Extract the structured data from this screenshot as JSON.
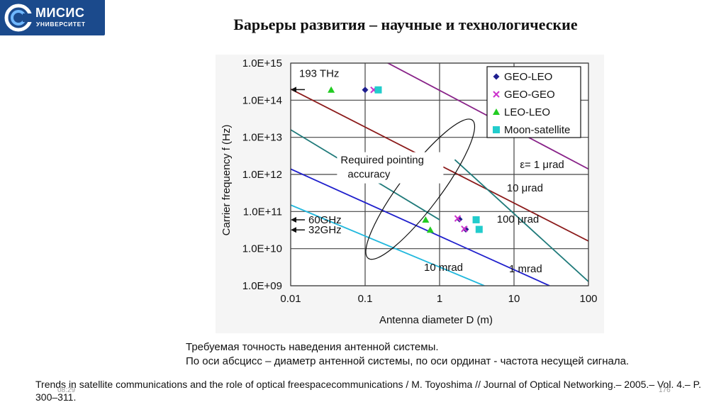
{
  "logo": {
    "name": "МИСИС",
    "sub": "УНИВЕРСИТЕТ"
  },
  "slide_title": "Барьеры развития – научные и технологические",
  "caption": {
    "line1": "Требуемая точность наведения антенной системы.",
    "line2": "По оси абсцисс – диаметр антенной системы, по оси ординат - частота несущей сигнала."
  },
  "reference": "Trends in satellite communications and the role of optical freespacecommunications / M. Toyoshima // Journal of Optical Networking.– 2005.– Vol. 4.– P. 300–311.",
  "footer": {
    "date": "08:29",
    "slide_number": "176"
  },
  "colors": {
    "logo_bg": "#1b4a8c",
    "plot_bg": "#f5f5f5"
  },
  "chart_data": {
    "type": "scatter",
    "xlabel": "Antenna diameter D (m)",
    "ylabel": "Carrier frequency f (Hz)",
    "x_scale": "log",
    "y_scale": "log",
    "xlim": [
      0.01,
      100
    ],
    "ylim": [
      1000000000.0,
      1000000000000000.0
    ],
    "x_ticks": [
      0.01,
      0.1,
      1,
      10,
      100
    ],
    "x_tick_labels": [
      "0.01",
      "0.1",
      "1",
      "10",
      "100"
    ],
    "y_ticks": [
      1000000000.0,
      10000000000.0,
      100000000000.0,
      1000000000000.0,
      10000000000000.0,
      100000000000000.0,
      1000000000000000.0
    ],
    "y_tick_labels": [
      "1.0E+09",
      "1.0E+10",
      "1.0E+11",
      "1.0E+12",
      "1.0E+13",
      "1.0E+14",
      "1.0E+15"
    ],
    "grid": true,
    "legend_position": "top-right",
    "series": [
      {
        "name": "GEO-LEO",
        "marker": "diamond",
        "color": "#1f1f8f",
        "points": [
          [
            0.1,
            190000000000000.0
          ],
          [
            1.85,
            62000000000.0
          ],
          [
            2.25,
            33000000000.0
          ]
        ]
      },
      {
        "name": "GEO-GEO",
        "marker": "x",
        "color": "#cc33cc",
        "points": [
          [
            0.13,
            190000000000000.0
          ],
          [
            1.75,
            65000000000.0
          ],
          [
            2.15,
            34000000000.0
          ]
        ]
      },
      {
        "name": "LEO-LEO",
        "marker": "triangle",
        "color": "#22cc22",
        "points": [
          [
            0.035,
            190000000000000.0
          ],
          [
            0.65,
            60000000000.0
          ],
          [
            0.75,
            32000000000.0
          ]
        ]
      },
      {
        "name": "Moon-satellite",
        "marker": "square",
        "color": "#22cccc",
        "points": [
          [
            0.15,
            190000000000000.0
          ],
          [
            3.1,
            60000000000.0
          ],
          [
            3.4,
            33000000000.0
          ]
        ]
      }
    ],
    "lines": [
      {
        "label": "ε= 1 μrad",
        "color": "#882288",
        "points": [
          [
            0.13,
            1600000000000000.0
          ],
          [
            100,
            1400000000000.0
          ]
        ]
      },
      {
        "label": "10 μrad",
        "color": "#8b1a1a",
        "points": [
          [
            0.01,
            200000000000000.0
          ],
          [
            100,
            16000000000.0
          ]
        ]
      },
      {
        "label": "100 μrad",
        "color": "#1f7a7a",
        "points": [
          [
            0.01,
            16000000000000.0
          ],
          [
            1,
            60000000000.0
          ]
        ]
      },
      {
        "label": "100 μrad",
        "color": "#1f7a7a",
        "points": [
          [
            1.6,
            2500000000000.0
          ],
          [
            100,
            1300000000.0
          ]
        ]
      },
      {
        "label": "1 mrad",
        "color": "#1f1fcc",
        "points": [
          [
            0.01,
            1400000000000.0
          ],
          [
            30,
            1000000000.0
          ]
        ]
      },
      {
        "label": "10 mrad",
        "color": "#22b8dd",
        "points": [
          [
            0.01,
            150000000000.0
          ],
          [
            4,
            1000000000.0
          ]
        ]
      }
    ],
    "frequency_markers": [
      {
        "label": "193 THz",
        "value": 193000000000000.0
      },
      {
        "label": "60GHz",
        "value": 60000000000.0
      },
      {
        "label": "32GHz",
        "value": 32000000000.0
      }
    ],
    "annotation": "Required pointing accuracy"
  }
}
